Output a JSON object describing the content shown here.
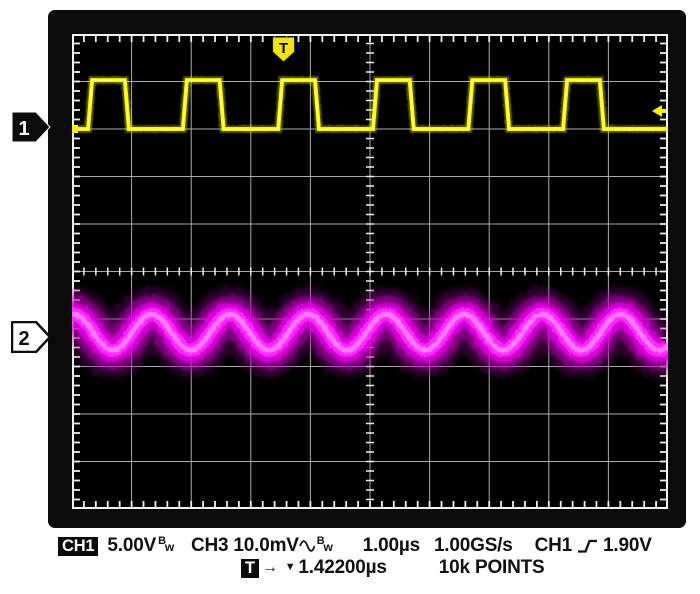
{
  "scope": {
    "bezel_color": "#0b0b0b",
    "screen_bg": "#000000",
    "grid": {
      "cols": 10,
      "rows": 10,
      "minor_per_div": 5,
      "line_color": "#ababab",
      "border_color": "#f4f4f4",
      "tick_color": "#efefef"
    },
    "markers": {
      "trigger": "T",
      "ch1": "1",
      "ch2": "2"
    },
    "trigger_marker_color": "#f2e412"
  },
  "chart_data": {
    "type": "line",
    "x_axis": {
      "time_per_div": "1.00µs",
      "divisions": 10
    },
    "y_axis": {
      "divisions": 10
    },
    "series": [
      {
        "name": "CH1",
        "description": "square wave",
        "volts_per_div": "5.00V",
        "high_div": 0.97,
        "low_div": 2.0,
        "high_time_divs": 0.55,
        "edge_divs": 0.067,
        "rise_positions_div": [
          0.27,
          1.86,
          3.46,
          5.05,
          6.65,
          8.24
        ],
        "color": "#f7f40f"
      },
      {
        "name": "CH3",
        "description": "noisy sine",
        "volts_per_div": "10.0mV",
        "center_div": 6.28,
        "amplitude_div": 0.38,
        "period_divs": 1.31,
        "first_crest_div": 0.03,
        "color": "#ff1fff",
        "fuzz_colors": [
          "#9b009b",
          "#c800c8",
          "#ee00ee",
          "#ff2cff",
          "#ff7dff"
        ]
      }
    ],
    "trigger": {
      "source": "CH1",
      "level": "1.90V",
      "level_div_below_top": 1.62,
      "position_div": 3.55
    }
  },
  "readout": {
    "ch1_label": "CH1",
    "ch1_scale": "5.00V",
    "bw_b": "B",
    "bw_w": "w",
    "ch3_label": "CH3",
    "ch3_scale": "10.0mV",
    "timebase": "1.00µs",
    "sample_rate": "1.00GS/s",
    "trig_source": "CH1",
    "trig_level": "1.90V",
    "trig_badge": "T",
    "trig_arrow": "→",
    "trig_cursor": "▼",
    "trig_delay": "1.42200µs",
    "record": "10k POINTS"
  }
}
